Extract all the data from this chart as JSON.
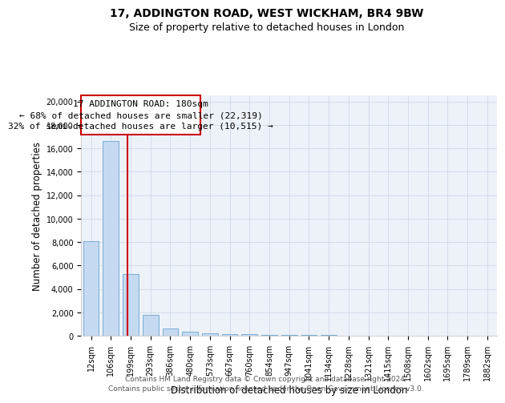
{
  "title1": "17, ADDINGTON ROAD, WEST WICKHAM, BR4 9BW",
  "title2": "Size of property relative to detached houses in London",
  "xlabel": "Distribution of detached houses by size in London",
  "ylabel": "Number of detached properties",
  "categories": [
    "12sqm",
    "106sqm",
    "199sqm",
    "293sqm",
    "386sqm",
    "480sqm",
    "573sqm",
    "667sqm",
    "760sqm",
    "854sqm",
    "947sqm",
    "1041sqm",
    "1134sqm",
    "1228sqm",
    "1321sqm",
    "1415sqm",
    "1508sqm",
    "1602sqm",
    "1695sqm",
    "1789sqm",
    "1882sqm"
  ],
  "bar_heights": [
    8100,
    16600,
    5300,
    1800,
    650,
    350,
    200,
    160,
    150,
    110,
    80,
    60,
    50,
    40,
    35,
    30,
    25,
    20,
    18,
    15,
    12
  ],
  "bar_color": "#c5d9f0",
  "bar_edge_color": "#7aadd4",
  "bar_width": 0.8,
  "property_line_x": 1.85,
  "annotation_line1": "17 ADDINGTON ROAD: 180sqm",
  "annotation_line2": "← 68% of detached houses are smaller (22,319)",
  "annotation_line3": "32% of semi-detached houses are larger (10,515) →",
  "ylim": [
    0,
    20500
  ],
  "yticks": [
    0,
    2000,
    4000,
    6000,
    8000,
    10000,
    12000,
    14000,
    16000,
    18000,
    20000
  ],
  "footer1": "Contains HM Land Registry data © Crown copyright and database right 2024.",
  "footer2": "Contains public sector information licensed under the Open Government Licence v3.0.",
  "title1_fontsize": 10,
  "title2_fontsize": 9,
  "axis_label_fontsize": 8.5,
  "tick_fontsize": 7,
  "annotation_fontsize": 8,
  "footer_fontsize": 6.5,
  "grid_color": "#d0d8e8",
  "annotation_box_color": "#cc0000",
  "bg_color": "#edf2f9"
}
